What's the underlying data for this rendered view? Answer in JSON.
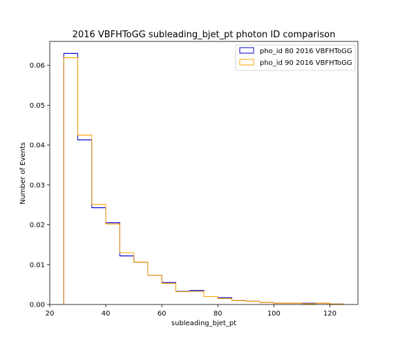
{
  "chart_data": {
    "type": "histogram",
    "title": "2016 VBFHToGG subleading_bjet_pt photon ID comparison",
    "xlabel": "subleading_bjet_pt",
    "ylabel": "Number of Events",
    "xlim": [
      20,
      130
    ],
    "ylim": [
      0,
      0.066
    ],
    "xticks": [
      20,
      40,
      60,
      80,
      100,
      120
    ],
    "yticks": [
      0.0,
      0.01,
      0.02,
      0.03,
      0.04,
      0.05,
      0.06
    ],
    "ytick_labels": [
      "0.00",
      "0.01",
      "0.02",
      "0.03",
      "0.04",
      "0.05",
      "0.06"
    ],
    "bin_edges": [
      25,
      30,
      35,
      40,
      45,
      50,
      55,
      60,
      65,
      70,
      75,
      80,
      85,
      90,
      95,
      100,
      105,
      110,
      115,
      120,
      125
    ],
    "legend_position": "top-right",
    "series": [
      {
        "name": "pho_id 80 2016 VBFHToGG",
        "color": "#0000cc",
        "values": [
          0.063,
          0.0413,
          0.0243,
          0.0205,
          0.0122,
          0.0106,
          0.0073,
          0.0055,
          0.0033,
          0.0035,
          0.002,
          0.0017,
          0.001,
          0.0008,
          0.0005,
          0.0003,
          0.0003,
          0.0003,
          0.0003,
          0.0001
        ]
      },
      {
        "name": "pho_id 90 2016 VBFHToGG",
        "color": "#ffa500",
        "values": [
          0.0619,
          0.0425,
          0.0251,
          0.0202,
          0.013,
          0.0106,
          0.0073,
          0.0053,
          0.0032,
          0.0033,
          0.002,
          0.0015,
          0.001,
          0.0008,
          0.0005,
          0.0003,
          0.0003,
          0.0002,
          0.0003,
          0.0001
        ]
      }
    ]
  }
}
